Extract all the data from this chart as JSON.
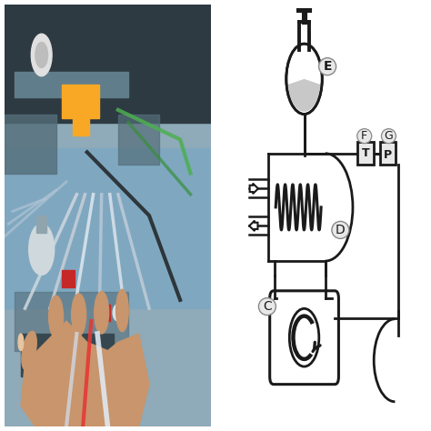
{
  "bg_color": "#ffffff",
  "diagram_line_color": "#1a1a1a",
  "label_E": "E",
  "label_D": "D",
  "label_C": "C",
  "label_F": "F",
  "label_T": "T",
  "label_G": "G",
  "label_P": "P",
  "flask_fill_color": "#cccccc",
  "photo_bg": "#b0bec5",
  "photo_dark1": "#37474f",
  "photo_dark2": "#455a64",
  "photo_yellow": "#f9a825",
  "photo_skin": "#d7a67a",
  "photo_red": "#c62828",
  "photo_blue": "#78909c"
}
